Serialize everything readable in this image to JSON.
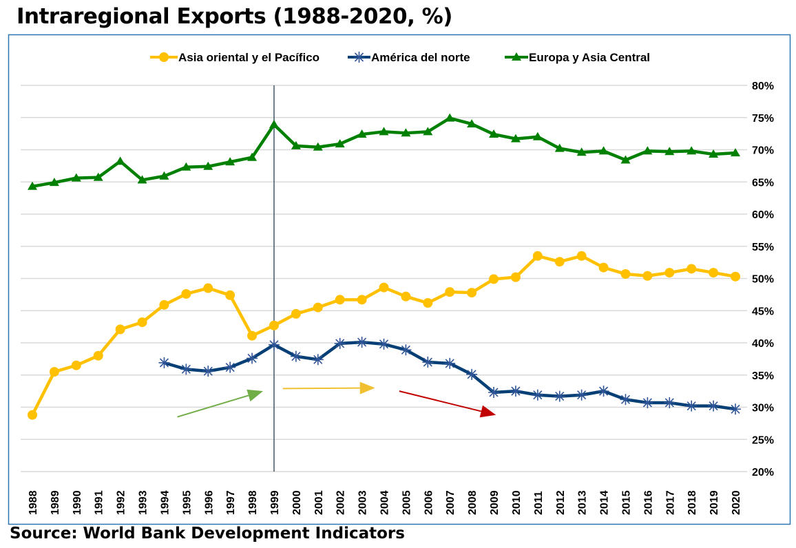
{
  "chart_data": {
    "type": "line",
    "title": "Intraregional Exports (1988-2020, %)",
    "source": "Source: World Bank Development Indicators",
    "xlabel": "",
    "ylabel": "",
    "ylim": [
      20,
      80
    ],
    "yticks": [
      "20%",
      "25%",
      "30%",
      "35%",
      "40%",
      "45%",
      "50%",
      "55%",
      "60%",
      "65%",
      "70%",
      "75%",
      "80%"
    ],
    "x": [
      1988,
      1989,
      1990,
      1991,
      1992,
      1993,
      1994,
      1995,
      1996,
      1997,
      1998,
      1999,
      2000,
      2001,
      2002,
      2003,
      2004,
      2005,
      2006,
      2007,
      2008,
      2009,
      2010,
      2011,
      2012,
      2013,
      2014,
      2015,
      2016,
      2017,
      2018,
      2019,
      2020
    ],
    "legend_position": "top-center",
    "grid": true,
    "vertical_marker_year": 1999,
    "series": [
      {
        "name": "Asia oriental y el Pacífico",
        "color": "#FFC000",
        "marker": "circle",
        "values": [
          28.8,
          35.5,
          36.5,
          38.0,
          42.1,
          43.2,
          45.9,
          47.6,
          48.5,
          47.4,
          41.1,
          42.7,
          44.5,
          45.5,
          46.7,
          46.7,
          48.6,
          47.2,
          46.2,
          47.9,
          47.8,
          49.9,
          50.2,
          53.5,
          52.6,
          53.5,
          51.7,
          50.7,
          50.4,
          50.9,
          51.5,
          50.9,
          50.3
        ]
      },
      {
        "name": "América del norte",
        "color": "#063F75",
        "marker": "star",
        "values": [
          null,
          null,
          null,
          null,
          null,
          null,
          36.9,
          35.9,
          35.6,
          36.2,
          37.6,
          39.7,
          37.9,
          37.4,
          39.9,
          40.1,
          39.8,
          38.9,
          37.0,
          36.8,
          35.1,
          32.3,
          32.5,
          31.9,
          31.7,
          31.9,
          32.5,
          31.2,
          30.7,
          30.7,
          30.2,
          30.2,
          29.7
        ]
      },
      {
        "name": "Europa y Asia Central",
        "color": "#008000",
        "marker": "triangle",
        "values": [
          64.3,
          64.9,
          65.6,
          65.7,
          68.2,
          65.3,
          65.9,
          67.3,
          67.4,
          68.1,
          68.8,
          73.9,
          70.6,
          70.4,
          70.9,
          72.4,
          72.8,
          72.6,
          72.8,
          74.9,
          74.0,
          72.4,
          71.7,
          72.0,
          70.2,
          69.6,
          69.8,
          68.4,
          69.8,
          69.7,
          69.8,
          69.3,
          69.5
        ]
      }
    ],
    "annotations": [
      {
        "type": "arrow",
        "color": "#70AD47",
        "from": [
          1994.6,
          28.5
        ],
        "to": [
          1998.5,
          32.5
        ]
      },
      {
        "type": "arrow",
        "color": "#F0C030",
        "from": [
          1999.4,
          32.9
        ],
        "to": [
          2003.6,
          33.0
        ]
      },
      {
        "type": "arrow",
        "color": "#C00000",
        "from": [
          2004.7,
          32.5
        ],
        "to": [
          2009.1,
          28.8
        ]
      }
    ]
  }
}
